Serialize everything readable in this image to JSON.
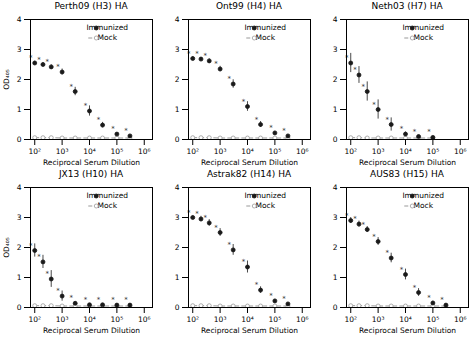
{
  "chart_data": [
    {
      "type": "line",
      "title": "Perth09 (H3) HA",
      "xlabel": "Reciprocal Serum Dilution",
      "ylabel": "OD₄₀₅",
      "x": [
        100,
        200,
        400,
        1000,
        3000,
        10000,
        30000,
        100000,
        300000
      ],
      "series": [
        {
          "name": "Immunized",
          "type": "scatter",
          "marker": "circle",
          "color": "#1a1a1a",
          "values": [
            2.55,
            2.5,
            2.42,
            2.25,
            1.6,
            0.95,
            0.48,
            0.18,
            0.12
          ],
          "yerr": [
            0.06,
            0.06,
            0.07,
            0.1,
            0.14,
            0.17,
            0.09,
            0.04,
            0.03
          ]
        },
        {
          "name": "Mock",
          "type": "line",
          "line_style": "dashed",
          "marker": "open_circle",
          "color": "#999999",
          "values": [
            0.06,
            0.06,
            0.06,
            0.05,
            0.05,
            0.05,
            0.05,
            0.05,
            0.05
          ],
          "yerr": [
            0.01,
            0.01,
            0.01,
            0.01,
            0.01,
            0.01,
            0.01,
            0.01,
            0.01
          ]
        }
      ],
      "annotations": [
        {
          "text": "*",
          "x": 100,
          "y": 2.55,
          "color": "#333333"
        },
        {
          "text": "*",
          "x": 200,
          "y": 2.5,
          "color": "#333333"
        },
        {
          "text": "*",
          "x": 400,
          "y": 2.42,
          "color": "#333333"
        },
        {
          "text": "*",
          "x": 1000,
          "y": 2.25,
          "color": "#333333"
        },
        {
          "text": "*",
          "x": 3000,
          "y": 1.6,
          "color": "#333333"
        },
        {
          "text": "*",
          "x": 10000,
          "y": 0.95,
          "color": "#333333"
        },
        {
          "text": "*",
          "x": 30000,
          "y": 0.48,
          "color": "#333333"
        },
        {
          "text": "*",
          "x": 100000,
          "y": 0.18,
          "color": "#333333"
        },
        {
          "text": "*",
          "x": 300000,
          "y": 0.12,
          "color": "#333333"
        }
      ],
      "log": "x",
      "xlim": [
        70,
        2000000
      ],
      "xticks": [
        {
          "value": 100,
          "label": "10²"
        },
        {
          "value": 1000,
          "label": "10³"
        },
        {
          "value": 10000,
          "label": "10⁴"
        },
        {
          "value": 100000,
          "label": "10⁵"
        },
        {
          "value": 1000000,
          "label": "10⁶"
        }
      ],
      "ylim": [
        0,
        4
      ],
      "yticks": [
        0,
        1,
        2,
        3,
        4
      ],
      "grid": false,
      "legend": "upper right"
    },
    {
      "type": "line",
      "title": "Ont99 (H4) HA",
      "xlabel": "Reciprocal Serum Dilution",
      "x": [
        100,
        200,
        400,
        1000,
        3000,
        10000,
        30000,
        100000,
        300000
      ],
      "series": [
        {
          "name": "Immunized",
          "type": "scatter",
          "marker": "circle",
          "color": "#1a1a1a",
          "values": [
            2.7,
            2.68,
            2.62,
            2.35,
            1.85,
            1.1,
            0.5,
            0.22,
            0.12
          ],
          "yerr": [
            0.06,
            0.06,
            0.07,
            0.09,
            0.14,
            0.16,
            0.1,
            0.05,
            0.03
          ]
        },
        {
          "name": "Mock",
          "type": "line",
          "line_style": "dashed",
          "marker": "open_circle",
          "color": "#999999",
          "values": [
            0.06,
            0.06,
            0.06,
            0.05,
            0.05,
            0.05,
            0.05,
            0.05,
            0.05
          ],
          "yerr": [
            0.01,
            0.01,
            0.01,
            0.01,
            0.01,
            0.01,
            0.01,
            0.01,
            0.01
          ]
        }
      ],
      "annotations": [
        {
          "text": "*",
          "x": 100,
          "y": 2.7,
          "color": "#333333"
        },
        {
          "text": "*",
          "x": 200,
          "y": 2.68,
          "color": "#333333"
        },
        {
          "text": "*",
          "x": 400,
          "y": 2.62,
          "color": "#333333"
        },
        {
          "text": "*",
          "x": 1000,
          "y": 2.35,
          "color": "#333333"
        },
        {
          "text": "*",
          "x": 3000,
          "y": 1.85,
          "color": "#333333"
        },
        {
          "text": "*",
          "x": 10000,
          "y": 1.1,
          "color": "#333333"
        },
        {
          "text": "*",
          "x": 30000,
          "y": 0.5,
          "color": "#333333"
        },
        {
          "text": "*",
          "x": 100000,
          "y": 0.22,
          "color": "#333333"
        },
        {
          "text": "*",
          "x": 300000,
          "y": 0.12,
          "color": "#333333"
        }
      ],
      "log": "x",
      "xlim": [
        70,
        2000000
      ],
      "xticks": [
        {
          "value": 100,
          "label": "10²"
        },
        {
          "value": 1000,
          "label": "10³"
        },
        {
          "value": 10000,
          "label": "10⁴"
        },
        {
          "value": 100000,
          "label": "10⁵"
        },
        {
          "value": 1000000,
          "label": "10⁶"
        }
      ],
      "ylim": [
        0,
        4
      ],
      "yticks": [
        0,
        1,
        2,
        3,
        4
      ],
      "grid": false,
      "legend": "upper right"
    },
    {
      "type": "line",
      "title": "Neth03 (H7) HA",
      "xlabel": "Reciprocal Serum Dilution",
      "x": [
        100,
        200,
        400,
        1000,
        3000,
        10000,
        30000,
        100000
      ],
      "series": [
        {
          "name": "Immunized",
          "type": "scatter",
          "marker": "circle",
          "color": "#1a1a1a",
          "values": [
            2.55,
            2.15,
            1.6,
            1.0,
            0.5,
            0.18,
            0.1,
            0.07
          ],
          "yerr": [
            0.32,
            0.28,
            0.32,
            0.32,
            0.22,
            0.07,
            0.04,
            0.03
          ]
        },
        {
          "name": "Mock",
          "type": "line",
          "line_style": "dashed",
          "marker": "open_circle",
          "color": "#999999",
          "values": [
            0.06,
            0.06,
            0.05,
            0.05,
            0.05,
            0.05,
            0.05,
            0.05
          ],
          "yerr": [
            0.01,
            0.01,
            0.01,
            0.01,
            0.01,
            0.01,
            0.01,
            0.01
          ]
        }
      ],
      "annotations": [
        {
          "text": "*",
          "x": 100,
          "y": 2.55,
          "color": "#333333"
        },
        {
          "text": "*",
          "x": 200,
          "y": 2.15,
          "color": "#333333"
        },
        {
          "text": "*",
          "x": 400,
          "y": 1.6,
          "color": "#333333"
        },
        {
          "text": "*",
          "x": 1000,
          "y": 1.0,
          "color": "#333333"
        },
        {
          "text": "*",
          "x": 3000,
          "y": 0.5,
          "color": "#333333"
        },
        {
          "text": "*",
          "x": 10000,
          "y": 0.18,
          "color": "#333333"
        },
        {
          "text": "*",
          "x": 30000,
          "y": 0.1,
          "color": "#333333"
        },
        {
          "text": "*",
          "x": 100000,
          "y": 0.07,
          "color": "#333333"
        }
      ],
      "log": "x",
      "xlim": [
        70,
        2000000
      ],
      "xticks": [
        {
          "value": 100,
          "label": "10²"
        },
        {
          "value": 1000,
          "label": "10³"
        },
        {
          "value": 10000,
          "label": "10⁴"
        },
        {
          "value": 100000,
          "label": "10⁵"
        },
        {
          "value": 1000000,
          "label": "10⁶"
        }
      ],
      "ylim": [
        0,
        4
      ],
      "yticks": [
        0,
        1,
        2,
        3,
        4
      ],
      "grid": false,
      "legend": "upper right"
    },
    {
      "type": "line",
      "title": "JX13 (H10) HA",
      "xlabel": "Reciprocal Serum Dilution",
      "ylabel": "OD₄₀₅",
      "x": [
        100,
        200,
        400,
        1000,
        3000,
        10000,
        30000,
        100000,
        300000
      ],
      "series": [
        {
          "name": "Immunized",
          "type": "scatter",
          "marker": "circle",
          "color": "#1a1a1a",
          "values": [
            1.9,
            1.52,
            0.95,
            0.38,
            0.14,
            0.09,
            0.09,
            0.08,
            0.08
          ],
          "yerr": [
            0.22,
            0.22,
            0.28,
            0.17,
            0.05,
            0.03,
            0.03,
            0.03,
            0.03
          ]
        },
        {
          "name": "Mock",
          "type": "line",
          "line_style": "dashed",
          "marker": "open_circle",
          "color": "#999999",
          "values": [
            0.06,
            0.06,
            0.06,
            0.05,
            0.05,
            0.05,
            0.05,
            0.05,
            0.05
          ],
          "yerr": [
            0.01,
            0.01,
            0.01,
            0.01,
            0.01,
            0.01,
            0.01,
            0.01,
            0.01
          ]
        }
      ],
      "annotations": [
        {
          "text": "*",
          "x": 100,
          "y": 1.9,
          "color": "#333333"
        },
        {
          "text": "*",
          "x": 200,
          "y": 1.52,
          "color": "#333333"
        },
        {
          "text": "*",
          "x": 400,
          "y": 0.95,
          "color": "#333333"
        },
        {
          "text": "*",
          "x": 1000,
          "y": 0.38,
          "color": "#333333"
        },
        {
          "text": "*",
          "x": 3000,
          "y": 0.14,
          "color": "#333333"
        },
        {
          "text": "*",
          "x": 10000,
          "y": 0.09,
          "color": "#333333"
        },
        {
          "text": "*",
          "x": 30000,
          "y": 0.09,
          "color": "#333333"
        },
        {
          "text": "*",
          "x": 100000,
          "y": 0.08,
          "color": "#333333"
        },
        {
          "text": "*",
          "x": 300000,
          "y": 0.08,
          "color": "#333333"
        }
      ],
      "log": "x",
      "xlim": [
        70,
        2000000
      ],
      "xticks": [
        {
          "value": 100,
          "label": "10²"
        },
        {
          "value": 1000,
          "label": "10³"
        },
        {
          "value": 10000,
          "label": "10⁴"
        },
        {
          "value": 100000,
          "label": "10⁵"
        },
        {
          "value": 1000000,
          "label": "10⁶"
        }
      ],
      "ylim": [
        0,
        4
      ],
      "yticks": [
        0,
        1,
        2,
        3,
        4
      ],
      "grid": false,
      "legend": "upper right"
    },
    {
      "type": "line",
      "title": "Astrak82 (H14) HA",
      "xlabel": "Reciprocal Serum Dilution",
      "x": [
        100,
        200,
        400,
        1000,
        3000,
        10000,
        30000,
        100000,
        300000
      ],
      "series": [
        {
          "name": "Immunized",
          "type": "scatter",
          "marker": "circle",
          "color": "#1a1a1a",
          "values": [
            3.0,
            2.95,
            2.82,
            2.5,
            1.92,
            1.35,
            0.58,
            0.22,
            0.12
          ],
          "yerr": [
            0.05,
            0.09,
            0.11,
            0.13,
            0.18,
            0.2,
            0.11,
            0.05,
            0.03
          ]
        },
        {
          "name": "Mock",
          "type": "line",
          "line_style": "dashed",
          "marker": "open_circle",
          "color": "#999999",
          "values": [
            0.06,
            0.06,
            0.06,
            0.05,
            0.05,
            0.05,
            0.05,
            0.05,
            0.05
          ],
          "yerr": [
            0.01,
            0.01,
            0.01,
            0.01,
            0.01,
            0.01,
            0.01,
            0.01,
            0.01
          ]
        }
      ],
      "annotations": [
        {
          "text": "*",
          "x": 100,
          "y": 3.0,
          "color": "#333333"
        },
        {
          "text": "*",
          "x": 200,
          "y": 2.95,
          "color": "#333333"
        },
        {
          "text": "*",
          "x": 400,
          "y": 2.82,
          "color": "#333333"
        },
        {
          "text": "*",
          "x": 1000,
          "y": 2.5,
          "color": "#333333"
        },
        {
          "text": "*",
          "x": 3000,
          "y": 1.92,
          "color": "#333333"
        },
        {
          "text": "*",
          "x": 10000,
          "y": 1.35,
          "color": "#333333"
        },
        {
          "text": "*",
          "x": 30000,
          "y": 0.58,
          "color": "#333333"
        },
        {
          "text": "*",
          "x": 100000,
          "y": 0.22,
          "color": "#333333"
        },
        {
          "text": "*",
          "x": 300000,
          "y": 0.12,
          "color": "#333333"
        }
      ],
      "log": "x",
      "xlim": [
        70,
        2000000
      ],
      "xticks": [
        {
          "value": 100,
          "label": "10²"
        },
        {
          "value": 1000,
          "label": "10³"
        },
        {
          "value": 10000,
          "label": "10⁴"
        },
        {
          "value": 100000,
          "label": "10⁵"
        },
        {
          "value": 1000000,
          "label": "10⁶"
        }
      ],
      "ylim": [
        0,
        4
      ],
      "yticks": [
        0,
        1,
        2,
        3,
        4
      ],
      "grid": false,
      "legend": "upper right"
    },
    {
      "type": "line",
      "title": "AUS83 (H15) HA",
      "xlabel": "Reciprocal Serum Dilution",
      "x": [
        100,
        200,
        400,
        1000,
        3000,
        10000,
        30000,
        100000,
        300000
      ],
      "series": [
        {
          "name": "Immunized",
          "type": "scatter",
          "marker": "circle",
          "color": "#1a1a1a",
          "values": [
            2.9,
            2.78,
            2.6,
            2.2,
            1.65,
            1.1,
            0.5,
            0.15,
            0.08
          ],
          "yerr": [
            0.1,
            0.1,
            0.1,
            0.13,
            0.16,
            0.18,
            0.13,
            0.06,
            0.03
          ]
        },
        {
          "name": "Mock",
          "type": "line",
          "line_style": "dashed",
          "marker": "open_circle",
          "color": "#999999",
          "values": [
            0.06,
            0.06,
            0.06,
            0.05,
            0.05,
            0.05,
            0.05,
            0.05,
            0.05
          ],
          "yerr": [
            0.01,
            0.01,
            0.01,
            0.01,
            0.01,
            0.01,
            0.01,
            0.01,
            0.01
          ]
        }
      ],
      "annotations": [
        {
          "text": "*",
          "x": 100,
          "y": 2.9,
          "color": "#333333"
        },
        {
          "text": "*",
          "x": 200,
          "y": 2.78,
          "color": "#333333"
        },
        {
          "text": "*",
          "x": 400,
          "y": 2.6,
          "color": "#333333"
        },
        {
          "text": "*",
          "x": 1000,
          "y": 2.2,
          "color": "#333333"
        },
        {
          "text": "*",
          "x": 3000,
          "y": 1.65,
          "color": "#333333"
        },
        {
          "text": "*",
          "x": 10000,
          "y": 1.1,
          "color": "#333333"
        },
        {
          "text": "*",
          "x": 30000,
          "y": 0.5,
          "color": "#333333"
        },
        {
          "text": "*",
          "x": 100000,
          "y": 0.15,
          "color": "#333333"
        },
        {
          "text": "*",
          "x": 300000,
          "y": 0.08,
          "color": "#333333"
        }
      ],
      "log": "x",
      "xlim": [
        70,
        2000000
      ],
      "xticks": [
        {
          "value": 100,
          "label": "10²"
        },
        {
          "value": 1000,
          "label": "10³"
        },
        {
          "value": 10000,
          "label": "10⁴"
        },
        {
          "value": 100000,
          "label": "10⁵"
        },
        {
          "value": 1000000,
          "label": "10⁶"
        }
      ],
      "ylim": [
        0,
        4
      ],
      "yticks": [
        0,
        1,
        2,
        3,
        4
      ],
      "grid": false,
      "legend": "upper right"
    }
  ]
}
